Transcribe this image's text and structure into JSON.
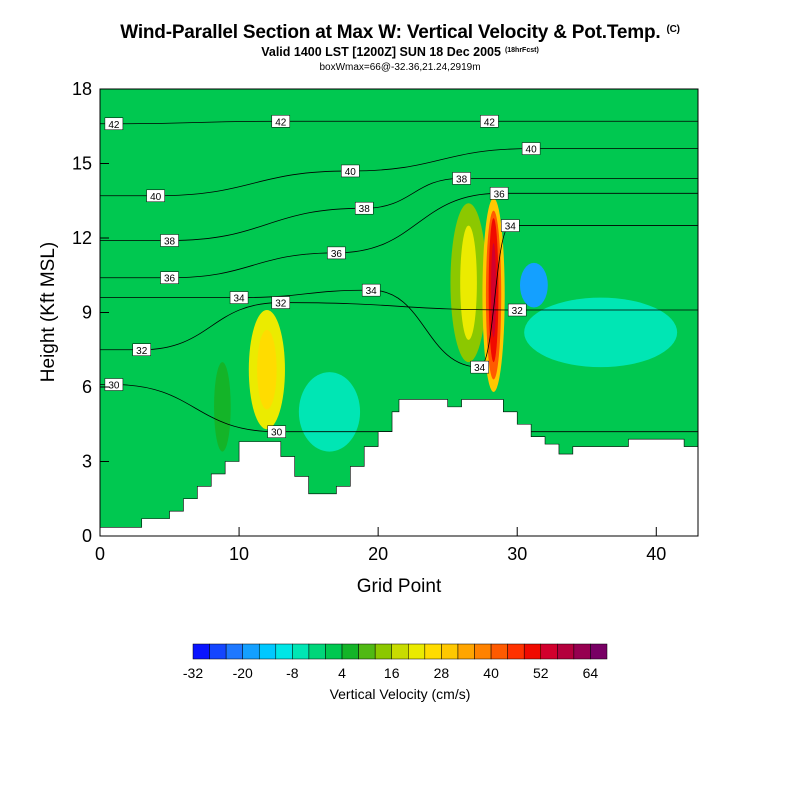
{
  "header": {
    "title": "Wind-Parallel Section at Max W: Vertical Velocity & Pot.Temp.",
    "title_units": "(C)",
    "subtitle": "Valid 1400 LST [1200Z] SUN 18 Dec 2005",
    "subtitle_note": "(18hrFcst)",
    "info": "boxWmax=66@-32.36,21.24,2919m"
  },
  "chart_data": {
    "type": "contour",
    "title": "Wind-Parallel Section at Max W: Vertical Velocity & Pot.Temp.",
    "xlabel": "Grid Point",
    "ylabel": "Height (Kft MSL)",
    "xlim": [
      0,
      43
    ],
    "ylim": [
      0,
      18
    ],
    "x_ticks": [
      0,
      10,
      20,
      30,
      40
    ],
    "x_tick_labels": [
      "0",
      "10",
      "20",
      "30",
      "40"
    ],
    "y_ticks": [
      0,
      3,
      6,
      9,
      12,
      15,
      18
    ],
    "y_tick_labels": [
      "0",
      "3",
      "6",
      "9",
      "12",
      "15",
      "18"
    ],
    "terrain": [
      [
        0,
        0.35
      ],
      [
        3,
        0.35
      ],
      [
        3,
        0.7
      ],
      [
        5,
        0.7
      ],
      [
        5,
        1.0
      ],
      [
        6,
        1.0
      ],
      [
        6,
        1.5
      ],
      [
        7,
        1.5
      ],
      [
        7,
        2.0
      ],
      [
        8,
        2.0
      ],
      [
        8,
        2.5
      ],
      [
        9,
        2.5
      ],
      [
        9,
        3.0
      ],
      [
        10,
        3.0
      ],
      [
        10,
        3.8
      ],
      [
        13,
        3.8
      ],
      [
        13,
        3.2
      ],
      [
        14,
        3.2
      ],
      [
        14,
        2.4
      ],
      [
        15,
        2.4
      ],
      [
        15,
        1.7
      ],
      [
        17,
        1.7
      ],
      [
        17,
        2.0
      ],
      [
        18,
        2.0
      ],
      [
        18,
        2.8
      ],
      [
        19,
        2.8
      ],
      [
        19,
        3.6
      ],
      [
        20,
        3.6
      ],
      [
        20,
        4.2
      ],
      [
        21,
        4.2
      ],
      [
        21,
        5.0
      ],
      [
        21.5,
        5.0
      ],
      [
        21.5,
        5.5
      ],
      [
        25,
        5.5
      ],
      [
        25,
        5.2
      ],
      [
        26,
        5.2
      ],
      [
        26,
        5.5
      ],
      [
        29,
        5.5
      ],
      [
        29,
        5.0
      ],
      [
        30,
        5.0
      ],
      [
        30,
        4.5
      ],
      [
        31,
        4.5
      ],
      [
        31,
        4.0
      ],
      [
        32,
        4.0
      ],
      [
        32,
        3.7
      ],
      [
        33,
        3.7
      ],
      [
        33,
        3.3
      ],
      [
        34,
        3.3
      ],
      [
        34,
        3.6
      ],
      [
        38,
        3.6
      ],
      [
        38,
        3.9
      ],
      [
        42,
        3.9
      ],
      [
        42,
        3.6
      ],
      [
        43,
        3.6
      ]
    ],
    "shaded_field": "Vertical Velocity (cm/s)",
    "cells": [
      {
        "x": 12,
        "y": 6.7,
        "rx": 1.3,
        "ry": 2.4,
        "w": 20
      },
      {
        "x": 12,
        "y": 6.7,
        "rx": 0.7,
        "ry": 1.6,
        "w": 24
      },
      {
        "x": 8.8,
        "y": 5.2,
        "rx": 0.6,
        "ry": 1.8,
        "w": 6
      },
      {
        "x": 26.5,
        "y": 10.2,
        "rx": 1.3,
        "ry": 3.2,
        "w": 14
      },
      {
        "x": 26.5,
        "y": 10.2,
        "rx": 0.6,
        "ry": 2.3,
        "w": 20
      },
      {
        "x": 28.3,
        "y": 9.7,
        "rx": 0.8,
        "ry": 3.9,
        "w": 28
      },
      {
        "x": 28.3,
        "y": 9.7,
        "rx": 0.55,
        "ry": 3.4,
        "w": 40
      },
      {
        "x": 28.3,
        "y": 9.9,
        "rx": 0.35,
        "ry": 2.9,
        "w": 48
      },
      {
        "x": 28.3,
        "y": 9.9,
        "rx": 0.18,
        "ry": 1.9,
        "w": 52
      },
      {
        "x": 31.2,
        "y": 10.1,
        "rx": 1.0,
        "ry": 0.9,
        "w": -20
      },
      {
        "x": 16.5,
        "y": 5.0,
        "rx": 2.2,
        "ry": 1.6,
        "w": -8
      },
      {
        "x": 36.0,
        "y": 8.2,
        "rx": 5.5,
        "ry": 1.4,
        "w": -8
      }
    ],
    "theta_contours": [
      {
        "theta": 30,
        "label": "30",
        "label_x": 1.0,
        "label_y": 6.1
      },
      {
        "theta": 30,
        "label": "30",
        "label_x": 12.7,
        "label_y": 4.2
      },
      {
        "theta": 32,
        "label": "32",
        "label_x": 3.0,
        "label_y": 7.5
      },
      {
        "theta": 32,
        "label": "32",
        "label_x": 13.0,
        "label_y": 9.4
      },
      {
        "theta": 32,
        "label": "32",
        "label_x": 30.0,
        "label_y": 9.1
      },
      {
        "theta": 34,
        "label": "34",
        "label_x": 10.0,
        "label_y": 9.6
      },
      {
        "theta": 34,
        "label": "34",
        "label_x": 19.5,
        "label_y": 9.9
      },
      {
        "theta": 34,
        "label": "34",
        "label_x": 27.3,
        "label_y": 6.8
      },
      {
        "theta": 34,
        "label": "34",
        "label_x": 29.5,
        "label_y": 12.5
      },
      {
        "theta": 36,
        "label": "36",
        "label_x": 5.0,
        "label_y": 10.4
      },
      {
        "theta": 36,
        "label": "36",
        "label_x": 17.0,
        "label_y": 11.4
      },
      {
        "theta": 36,
        "label": "36",
        "label_x": 28.7,
        "label_y": 13.8
      },
      {
        "theta": 38,
        "label": "38",
        "label_x": 5.0,
        "label_y": 11.9
      },
      {
        "theta": 38,
        "label": "38",
        "label_x": 19.0,
        "label_y": 13.2
      },
      {
        "theta": 38,
        "label": "38",
        "label_x": 26.0,
        "label_y": 14.4
      },
      {
        "theta": 40,
        "label": "40",
        "label_x": 4.0,
        "label_y": 13.7
      },
      {
        "theta": 40,
        "label": "40",
        "label_x": 18.0,
        "label_y": 14.7
      },
      {
        "theta": 40,
        "label": "40",
        "label_x": 31.0,
        "label_y": 15.6
      },
      {
        "theta": 42,
        "label": "42",
        "label_x": 1.0,
        "label_y": 16.6
      },
      {
        "theta": 42,
        "label": "42",
        "label_x": 13.0,
        "label_y": 16.7
      },
      {
        "theta": 42,
        "label": "42",
        "label_x": 28.0,
        "label_y": 16.7
      }
    ],
    "colorbar": {
      "label": "Vertical Velocity (cm/s)",
      "levels": [
        -32,
        -28,
        -24,
        -20,
        -16,
        -12,
        -8,
        -4,
        0,
        4,
        8,
        12,
        16,
        20,
        24,
        28,
        32,
        36,
        40,
        44,
        48,
        52,
        56,
        60,
        64,
        68
      ],
      "tick_labels": [
        "-32",
        "-20",
        "-8",
        "4",
        "16",
        "28",
        "40",
        "52",
        "64"
      ],
      "colors": [
        "#0a14ff",
        "#1446ff",
        "#1e78ff",
        "#14a0ff",
        "#00c8ff",
        "#00e6e6",
        "#00e6b4",
        "#00d67a",
        "#00c850",
        "#14b428",
        "#50b914",
        "#8cc800",
        "#c8dc00",
        "#ebeb00",
        "#ffdc00",
        "#ffc800",
        "#ffa500",
        "#ff8200",
        "#ff5a00",
        "#ff3200",
        "#f00a00",
        "#d2002d",
        "#b4003c",
        "#960050",
        "#780064"
      ]
    }
  }
}
